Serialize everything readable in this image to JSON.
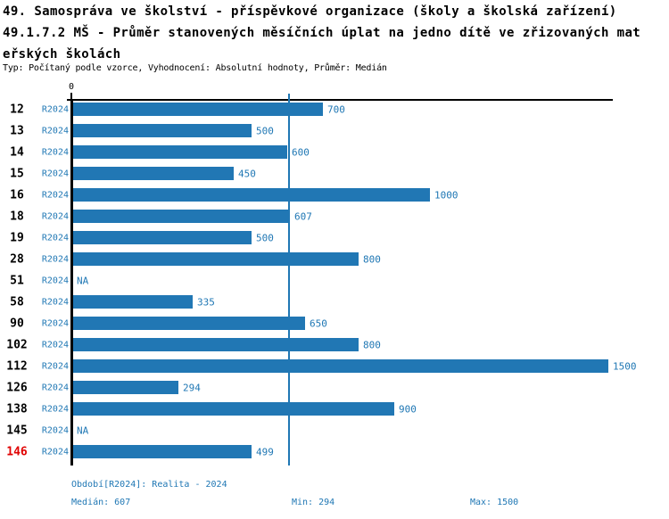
{
  "header": {
    "title_line1": "49. Samospráva ve školství - příspěvkové organizace (školy a školská zařízení)",
    "title_line2": "49.1.7.2 MŠ - Průměr stanovených měsíčních úplat na jedno dítě ve zřizovaných mat",
    "title_line3": "eřských školách",
    "subtitle": "Typ: Počítaný podle vzorce, Vyhodnocení: Absolutní hodnoty, Průměr: Medián"
  },
  "chart_data": {
    "type": "bar",
    "orientation": "horizontal",
    "axis_zero_label": "0",
    "series_label": "R2024",
    "na_label": "NA",
    "categories": [
      "12",
      "13",
      "14",
      "15",
      "16",
      "18",
      "19",
      "28",
      "51",
      "58",
      "90",
      "102",
      "112",
      "126",
      "138",
      "145",
      "146"
    ],
    "values": [
      700,
      500,
      600,
      450,
      1000,
      607,
      500,
      800,
      null,
      335,
      650,
      800,
      1500,
      294,
      900,
      null,
      499
    ],
    "highlighted_category": "146",
    "median_line_value": 607,
    "xlim": [
      0,
      1500
    ],
    "grid": false,
    "colors": {
      "bar": "#2177b4",
      "blue_text": "#1f77b4",
      "highlight_red": "#e00000",
      "axis": "#000000"
    }
  },
  "footer": {
    "period": "Období[R2024]: Realita - 2024",
    "median": "Medián: 607",
    "min": "Min: 294",
    "max": "Max: 1500"
  }
}
